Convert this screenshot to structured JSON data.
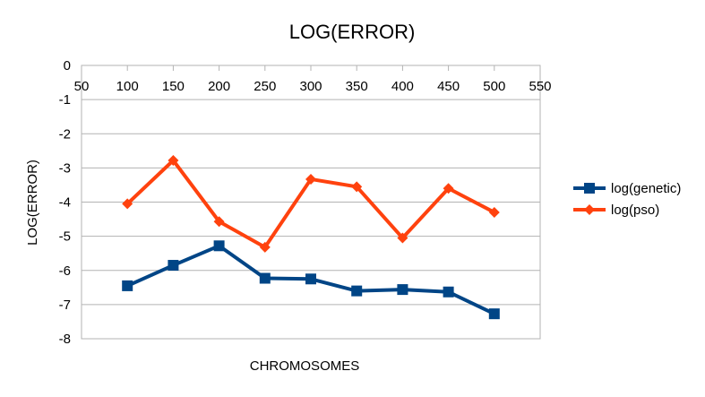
{
  "chart_data": {
    "type": "line",
    "title": "LOG(ERROR)",
    "xlabel": "CHROMOSOMES",
    "ylabel": "LOG(ERROR)",
    "xlim": [
      50,
      550
    ],
    "ylim": [
      -8,
      0
    ],
    "x_ticks": [
      50,
      100,
      150,
      200,
      250,
      300,
      350,
      400,
      450,
      500,
      550
    ],
    "y_ticks": [
      0,
      -1,
      -2,
      -3,
      -4,
      -5,
      -6,
      -7,
      -8
    ],
    "grid": "horizontal",
    "legend_position": "right",
    "x": [
      100,
      150,
      200,
      250,
      300,
      350,
      400,
      450,
      500
    ],
    "series": [
      {
        "name": "log(genetic)",
        "color": "#004586",
        "marker": "square",
        "values": [
          -6.45,
          -5.85,
          -5.28,
          -6.23,
          -6.25,
          -6.6,
          -6.56,
          -6.63,
          -7.27
        ]
      },
      {
        "name": "log(pso)",
        "color": "#ff420e",
        "marker": "diamond",
        "values": [
          -4.05,
          -2.78,
          -4.57,
          -5.32,
          -3.33,
          -3.55,
          -5.05,
          -3.6,
          -4.3
        ]
      }
    ]
  }
}
